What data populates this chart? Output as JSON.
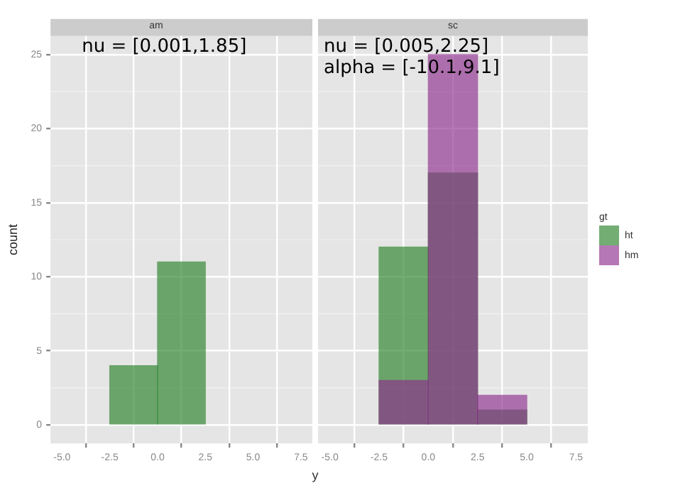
{
  "chart_data": [
    {
      "type": "histogram",
      "title": "am",
      "xlabel": "y",
      "ylabel": "count",
      "bins": [
        -2.5,
        0,
        2.5
      ],
      "series": [
        {
          "color": "#288128",
          "values": [
            4,
            11
          ]
        }
      ],
      "xlim": [
        -5.6,
        8.1
      ],
      "ylim": [
        -1.25,
        26.25
      ],
      "xticks": [
        {
          "value": -5,
          "label": "-5.0"
        },
        {
          "value": -2.5,
          "label": "-2.5"
        },
        {
          "value": 0,
          "label": "0.0"
        },
        {
          "value": 2.5,
          "label": "2.5"
        },
        {
          "value": 5,
          "label": "5.0"
        },
        {
          "value": 7.5,
          "label": "7.5"
        }
      ],
      "yticks": [
        0,
        5,
        10,
        15,
        20,
        25
      ],
      "grid": true,
      "legend": false,
      "annotations": [
        "nu = [0.001,1.85]"
      ]
    },
    {
      "type": "histogram",
      "title": "sc",
      "bins": [
        -2.5,
        0,
        2.5,
        5
      ],
      "series": [
        {
          "name": "ht",
          "color": "#288128",
          "values": [
            12,
            17,
            1
          ]
        },
        {
          "name": "hm",
          "color": "#8e2e8e",
          "values": [
            3,
            25,
            2
          ]
        }
      ],
      "xlim": [
        -5.6,
        8.1
      ],
      "ylim": [
        -1.25,
        26.25
      ],
      "xticks": [
        {
          "value": -5,
          "label": "-5.0"
        },
        {
          "value": -2.5,
          "label": "-2.5"
        },
        {
          "value": 0,
          "label": "0.0"
        },
        {
          "value": 2.5,
          "label": "2.5"
        },
        {
          "value": 5,
          "label": "5.0"
        },
        {
          "value": 7.5,
          "label": "7.5"
        }
      ],
      "yticks": [
        0,
        5,
        10,
        15,
        20,
        25
      ],
      "grid": true,
      "legend": "right",
      "legend_title": "gt",
      "tick_labels": "x",
      "annotations": [
        "nu = [0.005,2.25]",
        "alpha = [-10.1,9.1]"
      ]
    }
  ]
}
